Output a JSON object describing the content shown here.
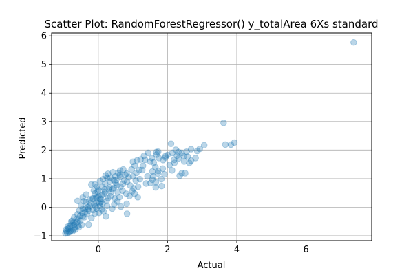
{
  "chart_data": {
    "type": "scatter",
    "title": "Scatter Plot: RandomForestRegressor() y_totalArea 6Xs standard",
    "xlabel": "Actual",
    "ylabel": "Predicted",
    "xlim": [
      -1.35,
      7.9
    ],
    "ylim": [
      -1.17,
      6.1
    ],
    "xticks": [
      0,
      2,
      4,
      6
    ],
    "yticks": [
      -1,
      0,
      1,
      2,
      3,
      4,
      5,
      6
    ],
    "grid": true,
    "marker_color": "#1f77b4",
    "marker_alpha": 0.3,
    "points": [
      [
        7.38,
        5.77
      ],
      [
        3.62,
        2.95
      ],
      [
        3.93,
        2.26
      ],
      [
        3.83,
        2.19
      ],
      [
        3.67,
        2.19
      ],
      [
        3.06,
        2.17
      ],
      [
        2.86,
        1.97
      ],
      [
        2.68,
        2.03
      ],
      [
        2.93,
        2.04
      ],
      [
        2.24,
        2.01
      ],
      [
        2.1,
        2.22
      ],
      [
        2.32,
        1.93
      ],
      [
        1.73,
        1.94
      ],
      [
        1.68,
        1.84
      ],
      [
        2.0,
        1.83
      ],
      [
        2.47,
        1.78
      ],
      [
        2.27,
        1.8
      ],
      [
        2.48,
        1.6
      ],
      [
        2.55,
        1.94
      ],
      [
        2.81,
        1.72
      ],
      [
        2.68,
        1.63
      ],
      [
        2.41,
        1.9
      ],
      [
        1.94,
        1.74
      ],
      [
        1.94,
        1.79
      ],
      [
        2.19,
        1.66
      ],
      [
        2.51,
        1.19
      ],
      [
        2.41,
        1.19
      ],
      [
        2.35,
        1.1
      ],
      [
        2.13,
        1.29
      ],
      [
        1.87,
        1.65
      ],
      [
        1.55,
        1.72
      ],
      [
        1.6,
        1.56
      ],
      [
        1.32,
        1.8
      ],
      [
        1.5,
        1.6
      ],
      [
        1.22,
        1.67
      ],
      [
        1.12,
        1.64
      ],
      [
        1.0,
        1.59
      ],
      [
        1.86,
        1.35
      ],
      [
        1.91,
        1.15
      ],
      [
        1.83,
        0.74
      ],
      [
        1.66,
        0.69
      ],
      [
        1.51,
        0.85
      ],
      [
        1.56,
        0.96
      ],
      [
        1.56,
        1.25
      ],
      [
        1.73,
        1.27
      ],
      [
        1.29,
        1.45
      ],
      [
        1.18,
        1.3
      ],
      [
        1.1,
        1.2
      ],
      [
        1.0,
        1.08
      ],
      [
        1.08,
        0.93
      ],
      [
        1.2,
        0.98
      ],
      [
        1.38,
        0.83
      ],
      [
        1.15,
        0.72
      ],
      [
        1.02,
        0.66
      ],
      [
        0.92,
        0.76
      ],
      [
        0.83,
        0.89
      ],
      [
        0.82,
        1.18
      ],
      [
        0.72,
        1.32
      ],
      [
        0.63,
        1.28
      ],
      [
        0.58,
        1.19
      ],
      [
        0.49,
        1.08
      ],
      [
        0.64,
        1.06
      ],
      [
        0.75,
        0.94
      ],
      [
        0.71,
        0.82
      ],
      [
        0.54,
        0.77
      ],
      [
        0.45,
        0.68
      ],
      [
        0.33,
        0.9
      ],
      [
        0.26,
        1.02
      ],
      [
        0.21,
        1.11
      ],
      [
        0.41,
        0.63
      ],
      [
        0.56,
        0.52
      ],
      [
        0.61,
        0.35
      ],
      [
        0.82,
        0.12
      ],
      [
        0.83,
        -0.23
      ],
      [
        0.55,
        0.2
      ],
      [
        0.46,
        0.1
      ],
      [
        0.35,
        0.38
      ],
      [
        0.24,
        0.22
      ],
      [
        0.15,
        0.46
      ],
      [
        0.08,
        0.28
      ],
      [
        0.05,
        0.04
      ],
      [
        0.02,
        -0.2
      ],
      [
        -0.02,
        0.55
      ],
      [
        -0.1,
        0.8
      ],
      [
        -0.07,
        0.33
      ],
      [
        -0.12,
        0.1
      ],
      [
        -0.15,
        -0.1
      ],
      [
        -0.2,
        -0.38
      ],
      [
        0.0,
        0.61
      ],
      [
        0.12,
        0.71
      ],
      [
        0.2,
        0.82
      ],
      [
        0.32,
        0.69
      ],
      [
        0.19,
        0.52
      ],
      [
        0.1,
        0.42
      ],
      [
        0.03,
        0.15
      ],
      [
        -0.05,
        -0.05
      ],
      [
        -0.1,
        -0.22
      ],
      [
        -0.25,
        0.27
      ],
      [
        -0.3,
        0.0
      ],
      [
        -0.38,
        -0.16
      ],
      [
        -0.45,
        -0.32
      ],
      [
        -0.52,
        -0.48
      ],
      [
        -0.28,
        -0.61
      ],
      [
        -0.6,
        -0.65
      ],
      [
        -0.68,
        -0.71
      ],
      [
        -0.75,
        -0.55
      ],
      [
        -0.72,
        -0.79
      ],
      [
        -0.8,
        -0.83
      ],
      [
        -0.85,
        -0.88
      ],
      [
        -0.9,
        -0.9
      ],
      [
        -0.95,
        -0.92
      ],
      [
        -0.88,
        -0.76
      ],
      [
        -0.82,
        -0.66
      ],
      [
        -0.76,
        -0.48
      ],
      [
        -0.7,
        -0.36
      ],
      [
        -0.6,
        -0.25
      ],
      [
        -0.55,
        -0.12
      ],
      [
        -0.5,
        0.05
      ],
      [
        -0.6,
        0.22
      ],
      [
        -0.45,
        0.35
      ],
      [
        -0.35,
        0.44
      ],
      [
        -0.42,
        0.21
      ],
      [
        -0.3,
        -0.07
      ],
      [
        -0.22,
        0.13
      ],
      [
        -0.18,
        0.3
      ],
      [
        -0.13,
        0.58
      ],
      [
        -0.03,
        0.72
      ],
      [
        -0.2,
        0.79
      ],
      [
        0.05,
        0.91
      ],
      [
        0.14,
        0.98
      ],
      [
        0.35,
        1.03
      ],
      [
        0.44,
        0.95
      ],
      [
        0.5,
        0.86
      ],
      [
        0.64,
        0.72
      ],
      [
        0.7,
        0.58
      ],
      [
        0.81,
        0.47
      ],
      [
        0.9,
        0.39
      ],
      [
        1.05,
        0.47
      ],
      [
        1.14,
        0.35
      ],
      [
        0.98,
        0.56
      ],
      [
        0.88,
        1.05
      ],
      [
        0.96,
        1.32
      ],
      [
        1.05,
        1.45
      ],
      [
        0.78,
        1.14
      ],
      [
        0.62,
        1.13
      ],
      [
        0.42,
        1.22
      ],
      [
        0.28,
        1.17
      ],
      [
        1.42,
        1.08
      ],
      [
        1.58,
        1.08
      ],
      [
        1.72,
        1.18
      ],
      [
        1.66,
        0.87
      ],
      [
        1.82,
        0.98
      ],
      [
        1.35,
        1.66
      ],
      [
        1.44,
        1.9
      ],
      [
        1.27,
        1.3
      ],
      [
        1.68,
        1.93
      ],
      [
        1.75,
        1.72
      ],
      [
        1.65,
        1.4
      ],
      [
        2.06,
        1.48
      ],
      [
        2.14,
        1.9
      ],
      [
        2.32,
        1.71
      ],
      [
        2.58,
        1.77
      ],
      [
        2.63,
        1.55
      ],
      [
        2.2,
        1.55
      ],
      [
        -0.15,
        0.3
      ],
      [
        0.25,
        0.05
      ],
      [
        0.15,
        -0.15
      ],
      [
        0.4,
        -0.05
      ],
      [
        0.65,
        0.02
      ],
      [
        -0.35,
        0.18
      ],
      [
        -0.45,
        -0.05
      ],
      [
        -0.62,
        -0.4
      ],
      [
        -0.78,
        -0.62
      ],
      [
        -0.85,
        -0.74
      ],
      [
        -0.92,
        -0.84
      ],
      [
        -0.66,
        -0.57
      ],
      [
        -0.58,
        -0.44
      ],
      [
        -0.4,
        -0.35
      ],
      [
        -0.33,
        -0.24
      ],
      [
        -0.27,
        -0.12
      ],
      [
        -0.08,
        0.02
      ],
      [
        0.07,
        0.18
      ],
      [
        0.28,
        0.32
      ],
      [
        0.36,
        0.52
      ],
      [
        0.48,
        0.31
      ],
      [
        0.22,
        -0.32
      ],
      [
        0.1,
        -0.08
      ],
      [
        -0.05,
        0.36
      ],
      [
        0.3,
        0.62
      ],
      [
        0.52,
        0.95
      ],
      [
        -0.78,
        -0.5
      ],
      [
        -0.7,
        -0.62
      ],
      [
        -0.88,
        -0.68
      ],
      [
        -0.93,
        -0.78
      ],
      [
        -0.82,
        -0.86
      ],
      [
        -0.74,
        -0.84
      ],
      [
        -0.66,
        -0.78
      ],
      [
        -0.56,
        -0.7
      ],
      [
        -0.48,
        -0.62
      ],
      [
        -0.62,
        -0.52
      ],
      [
        -0.52,
        -0.3
      ],
      [
        -0.46,
        -0.2
      ],
      [
        -0.38,
        -0.04
      ],
      [
        -0.25,
        0.05
      ],
      [
        -0.1,
        0.48
      ],
      [
        0.0,
        0.38
      ],
      [
        0.18,
        0.62
      ],
      [
        0.05,
        0.28
      ],
      [
        0.12,
        0.12
      ],
      [
        -0.05,
        0.15
      ]
    ]
  }
}
